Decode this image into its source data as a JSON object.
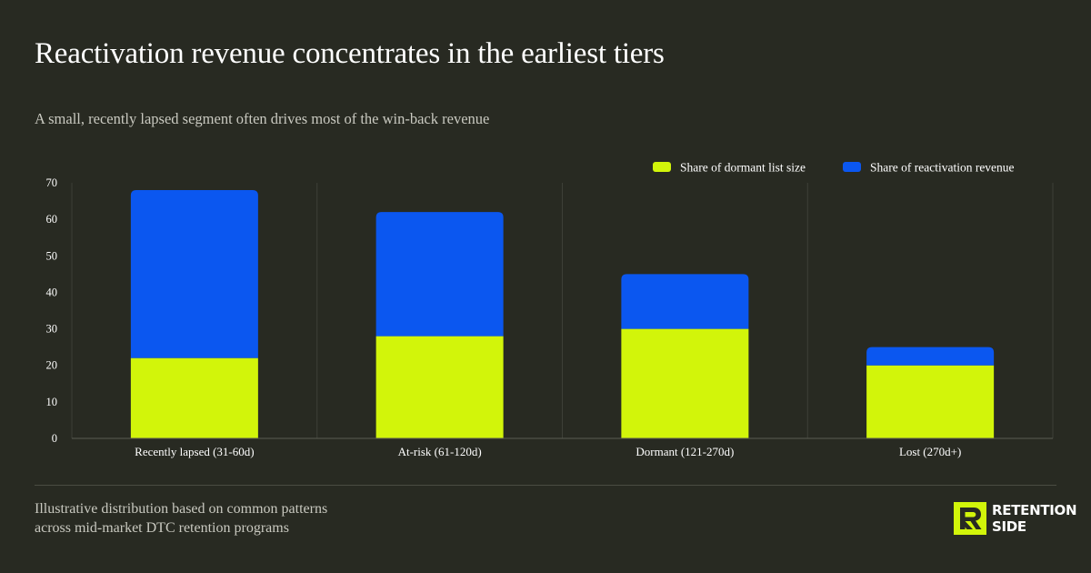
{
  "header": {
    "title": "Reactivation revenue concentrates in the earliest tiers",
    "subtitle": "A small, recently lapsed segment often drives most of the win-back revenue"
  },
  "footer": {
    "note_line1": "Illustrative distribution based on common patterns",
    "note_line2": "across mid-market DTC retention programs"
  },
  "brand": {
    "line1": "RETENTION",
    "line2": "SIDE",
    "accent": "#d2f50a"
  },
  "colors": {
    "background": "#282a22",
    "grid": "#3d3f37",
    "axis": "#5a5c53",
    "tick_text": "#ffffff"
  },
  "chart_data": {
    "type": "bar",
    "stacked": true,
    "categories": [
      "Recently lapsed (31-60d)",
      "At-risk (61-120d)",
      "Dormant (121-270d)",
      "Lost (270d+)"
    ],
    "series": [
      {
        "name": "Share of dormant list size",
        "values": [
          22,
          28,
          30,
          20
        ],
        "color": "#d2f50a"
      },
      {
        "name": "Share of reactivation revenue",
        "values": [
          46,
          34,
          15,
          5
        ],
        "color": "#0b57f0"
      }
    ],
    "yticks": [
      0,
      10,
      20,
      30,
      40,
      50,
      60,
      70
    ],
    "ylim": [
      0,
      70
    ],
    "legend_position": "top-right",
    "grid": "vertical separators between categories"
  }
}
